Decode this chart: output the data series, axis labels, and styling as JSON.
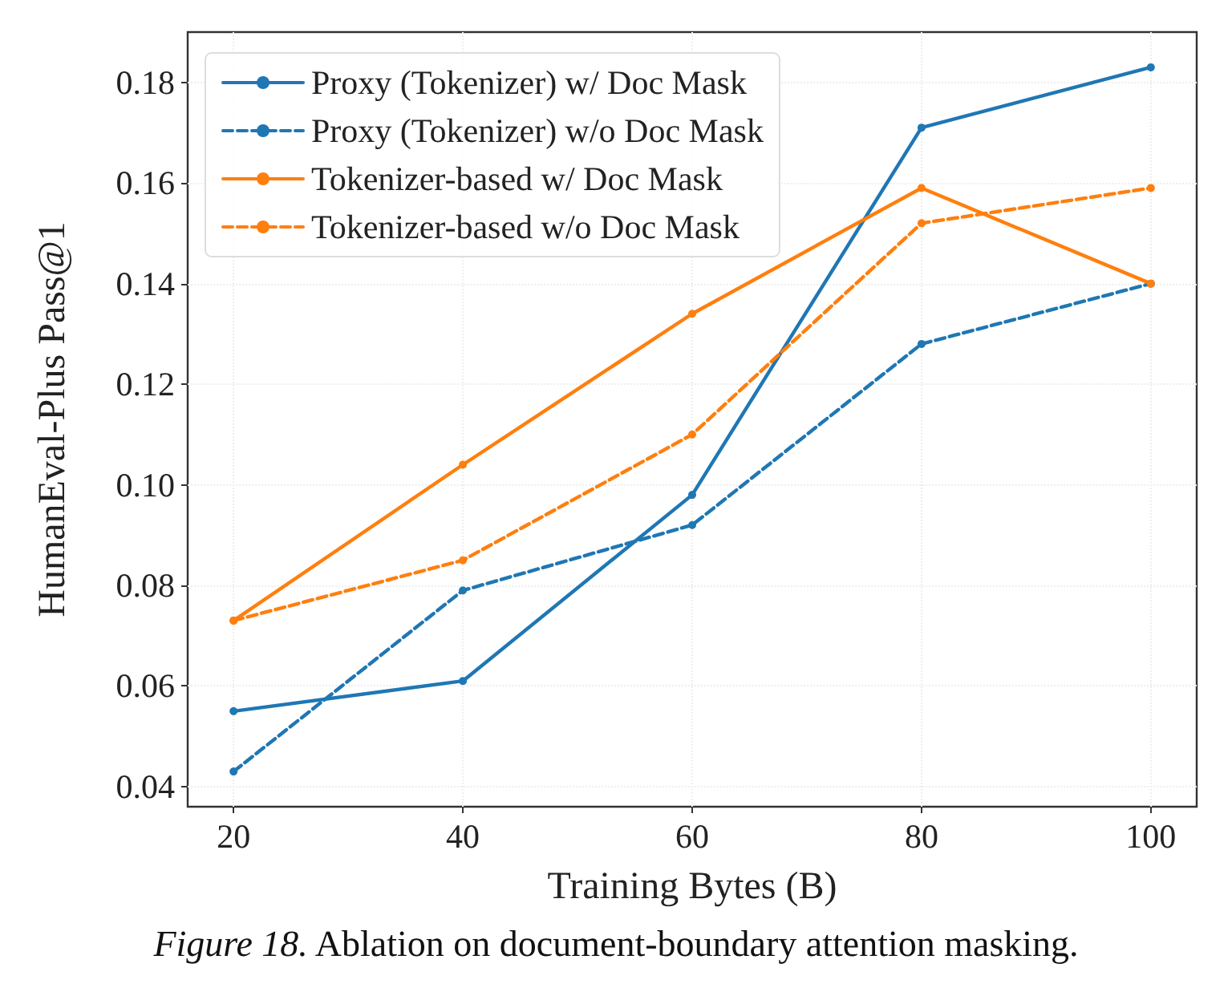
{
  "chart_data": {
    "type": "line",
    "xlabel": "Training Bytes (B)",
    "ylabel": "HumanEval-Plus Pass@1",
    "x": [
      20,
      40,
      60,
      80,
      100
    ],
    "series": [
      {
        "name": "Proxy (Tokenizer) w/ Doc Mask",
        "color": "#1f77b4",
        "line_style": "solid",
        "values": [
          0.055,
          0.061,
          0.098,
          0.171,
          0.183
        ]
      },
      {
        "name": "Proxy (Tokenizer) w/o Doc Mask",
        "color": "#1f77b4",
        "line_style": "dashed",
        "values": [
          0.043,
          0.079,
          0.092,
          0.128,
          0.14
        ]
      },
      {
        "name": "Tokenizer-based w/ Doc Mask",
        "color": "#ff7f0e",
        "line_style": "solid",
        "values": [
          0.073,
          0.104,
          0.134,
          0.159,
          0.14
        ]
      },
      {
        "name": "Tokenizer-based w/o Doc Mask",
        "color": "#ff7f0e",
        "line_style": "dashed",
        "values": [
          0.073,
          0.085,
          0.11,
          0.152,
          0.159
        ]
      }
    ],
    "xlim": [
      16,
      104
    ],
    "xticks": [
      20,
      40,
      60,
      80,
      100
    ],
    "ylim": [
      0.036,
      0.19
    ],
    "yticks": [
      0.04,
      0.06,
      0.08,
      {
        "value": 0.1,
        "label": "0.10"
      },
      0.12,
      0.14,
      0.16,
      0.18
    ],
    "grid": true,
    "legend": "top left",
    "marker": "circle",
    "annotations": [
      "Figure 18. Ablation on document-boundary attention masking."
    ]
  }
}
